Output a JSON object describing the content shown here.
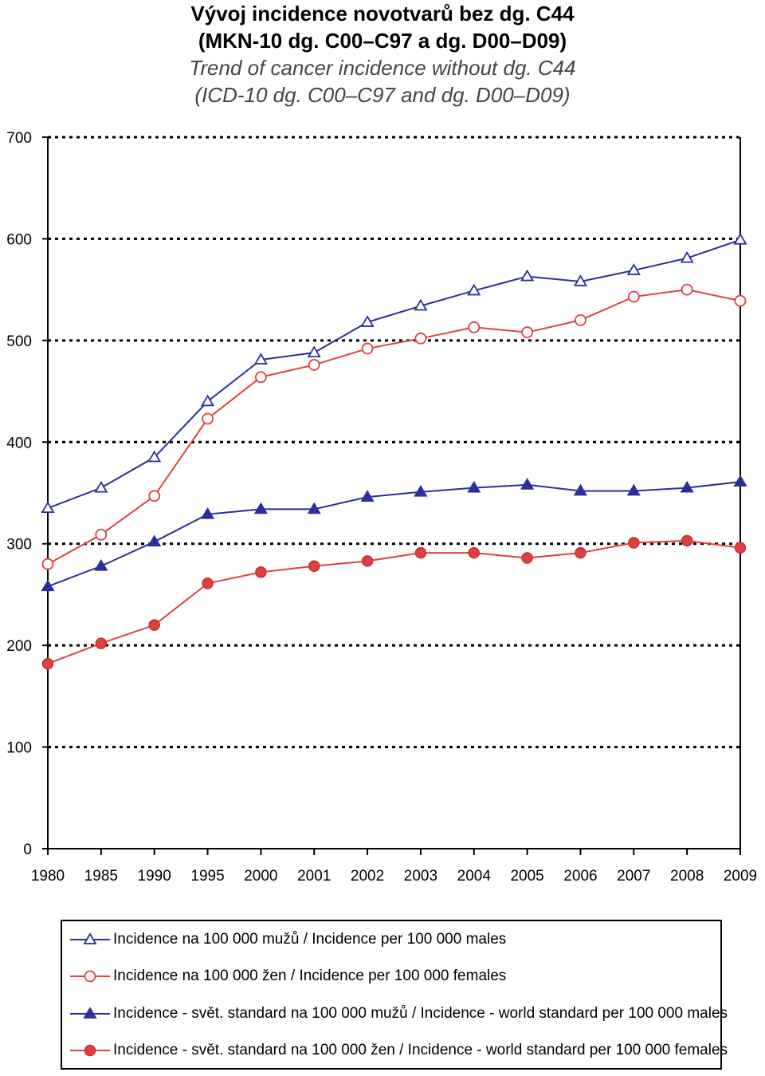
{
  "titles": {
    "line1": "Vývoj incidence novotvarů bez dg. C44",
    "line2": "(MKN-10 dg. C00–C97 a dg. D00–D09)",
    "line3": "Trend of cancer incidence without dg. C44",
    "line4": "(ICD-10 dg. C00–C97 and dg. D00–D09)"
  },
  "colors": {
    "blue": "#2b2f9c",
    "red": "#e0403e"
  },
  "chart_data": {
    "type": "line",
    "title": "Vývoj incidence novotvarů bez dg. C44 (MKN-10 dg. C00–C97 a dg. D00–D09) / Trend of cancer incidence without dg. C44 (ICD-10 dg. C00–C97 and dg. D00–D09)",
    "categories": [
      "1980",
      "1985",
      "1990",
      "1995",
      "2000",
      "2001",
      "2002",
      "2003",
      "2004",
      "2005",
      "2006",
      "2007",
      "2008",
      "2009"
    ],
    "ylim": [
      0,
      700
    ],
    "yticks": [
      0,
      100,
      200,
      300,
      400,
      500,
      600,
      700
    ],
    "grid": "dotted horizontal",
    "legend_position": "bottom",
    "series": [
      {
        "name": "Incidence na 100 000 mužů / Incidence per 100 000 males",
        "color": "#2b2f9c",
        "marker": "triangle-open",
        "values": [
          335,
          355,
          385,
          440,
          481,
          488,
          518,
          534,
          549,
          563,
          558,
          569,
          581,
          599
        ]
      },
      {
        "name": "Incidence na 100 000 žen / Incidence per 100 000 females",
        "color": "#e0403e",
        "marker": "circle-open",
        "values": [
          280,
          309,
          347,
          423,
          464,
          476,
          492,
          502,
          513,
          508,
          520,
          543,
          550,
          539
        ]
      },
      {
        "name": "Incidence - svět. standard na 100 000 mužů / Incidence - world standard per 100 000 males",
        "color": "#2b2f9c",
        "marker": "triangle-filled",
        "values": [
          258,
          278,
          302,
          329,
          334,
          334,
          346,
          351,
          355,
          358,
          352,
          352,
          355,
          361
        ]
      },
      {
        "name": "Incidence - svět. standard na 100 000 žen / Incidence - world standard per 100 000 females",
        "color": "#e0403e",
        "marker": "circle-filled",
        "values": [
          182,
          202,
          220,
          261,
          272,
          278,
          283,
          291,
          291,
          286,
          291,
          301,
          303,
          296
        ]
      }
    ]
  }
}
